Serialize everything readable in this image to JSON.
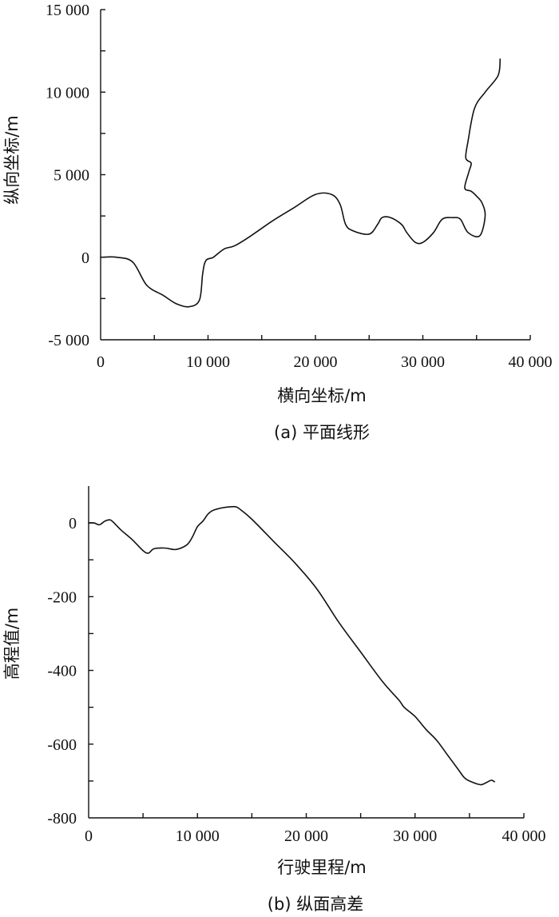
{
  "chart_data": [
    {
      "type": "line",
      "id": "a",
      "xlabel": "横向坐标/m",
      "ylabel": "纵向坐标/m",
      "caption": "(a) 平面线形",
      "xlim": [
        0,
        40000
      ],
      "ylim": [
        -5000,
        15000
      ],
      "x_ticks": [
        0,
        5000,
        10000,
        15000,
        20000,
        25000,
        30000,
        35000,
        40000
      ],
      "x_tick_labels": [
        {
          "value": 0,
          "label": "0"
        },
        {
          "value": 10000,
          "label": "10 000"
        },
        {
          "value": 20000,
          "label": "20 000"
        },
        {
          "value": 30000,
          "label": "30  000"
        },
        {
          "value": 40000,
          "label": "40  000"
        }
      ],
      "y_ticks": [
        -5000,
        -2500,
        0,
        2500,
        5000,
        7500,
        10000,
        12500,
        15000
      ],
      "y_tick_labels": [
        {
          "value": 15000,
          "label": "15 000"
        },
        {
          "value": 10000,
          "label": "10 000"
        },
        {
          "value": 5000,
          "label": "5 000"
        },
        {
          "value": 0,
          "label": "0"
        },
        {
          "value": -5000,
          "label": "-5 000"
        }
      ],
      "series": [
        {
          "x": [
            0,
            1500,
            3000,
            4300,
            5800,
            7000,
            8200,
            9200,
            9500,
            9800,
            10500,
            11500,
            12500,
            14000,
            16000,
            18000,
            20000,
            21500,
            22300,
            22800,
            23500,
            25000,
            25800,
            26200,
            27000,
            28000,
            28500,
            29300,
            30000,
            31000,
            31800,
            32800,
            33500,
            34200,
            35300,
            35800,
            35500,
            35000,
            34500,
            33900,
            34300,
            34500,
            34000,
            34200,
            34800,
            35800,
            37000,
            37200
          ],
          "y": [
            0,
            0,
            -300,
            -1700,
            -2300,
            -2800,
            -3000,
            -2600,
            -1000,
            -200,
            0,
            500,
            700,
            1300,
            2200,
            3000,
            3800,
            3800,
            3200,
            2000,
            1600,
            1400,
            2000,
            2400,
            2400,
            2000,
            1500,
            900,
            900,
            1500,
            2300,
            2400,
            2300,
            1500,
            1300,
            2500,
            3300,
            3700,
            4000,
            4200,
            5200,
            5700,
            6000,
            7000,
            9000,
            10000,
            11000,
            12000
          ]
        }
      ]
    },
    {
      "type": "line",
      "id": "b",
      "xlabel": "行驶里程/m",
      "ylabel": "高程值/m",
      "caption": "(b) 纵面高差",
      "xlim": [
        0,
        40000
      ],
      "ylim": [
        -800,
        100
      ],
      "x_ticks": [
        0,
        5000,
        10000,
        15000,
        20000,
        25000,
        30000,
        35000,
        40000
      ],
      "x_tick_labels": [
        {
          "value": 0,
          "label": "0"
        },
        {
          "value": 10000,
          "label": "10 000"
        },
        {
          "value": 20000,
          "label": "20 000"
        },
        {
          "value": 30000,
          "label": "30  000"
        },
        {
          "value": 40000,
          "label": "40  000"
        }
      ],
      "y_ticks": [
        -800,
        -700,
        -600,
        -500,
        -400,
        -300,
        -200,
        -100,
        0
      ],
      "y_tick_labels": [
        {
          "value": 0,
          "label": "0"
        },
        {
          "value": -200,
          "label": "-200"
        },
        {
          "value": -400,
          "label": "-400"
        },
        {
          "value": -600,
          "label": "-600"
        },
        {
          "value": -800,
          "label": "-800"
        }
      ],
      "series": [
        {
          "x": [
            0,
            500,
            1000,
            1500,
            2000,
            2500,
            3000,
            4000,
            5000,
            5500,
            6000,
            7000,
            8000,
            9000,
            9500,
            10000,
            10500,
            11000,
            11500,
            12500,
            13500,
            14000,
            15000,
            17000,
            19000,
            21000,
            23000,
            25000,
            27000,
            28500,
            29000,
            30000,
            31000,
            32000,
            33000,
            34000,
            34500,
            35000,
            36000,
            36500,
            37000,
            37300
          ],
          "y": [
            0,
            0,
            -5,
            5,
            8,
            -5,
            -20,
            -45,
            -75,
            -82,
            -70,
            -68,
            -72,
            -60,
            -40,
            -10,
            5,
            25,
            35,
            42,
            44,
            35,
            10,
            -50,
            -110,
            -180,
            -270,
            -350,
            -430,
            -480,
            -500,
            -525,
            -560,
            -590,
            -630,
            -670,
            -690,
            -700,
            -710,
            -705,
            -698,
            -702
          ]
        }
      ]
    }
  ]
}
